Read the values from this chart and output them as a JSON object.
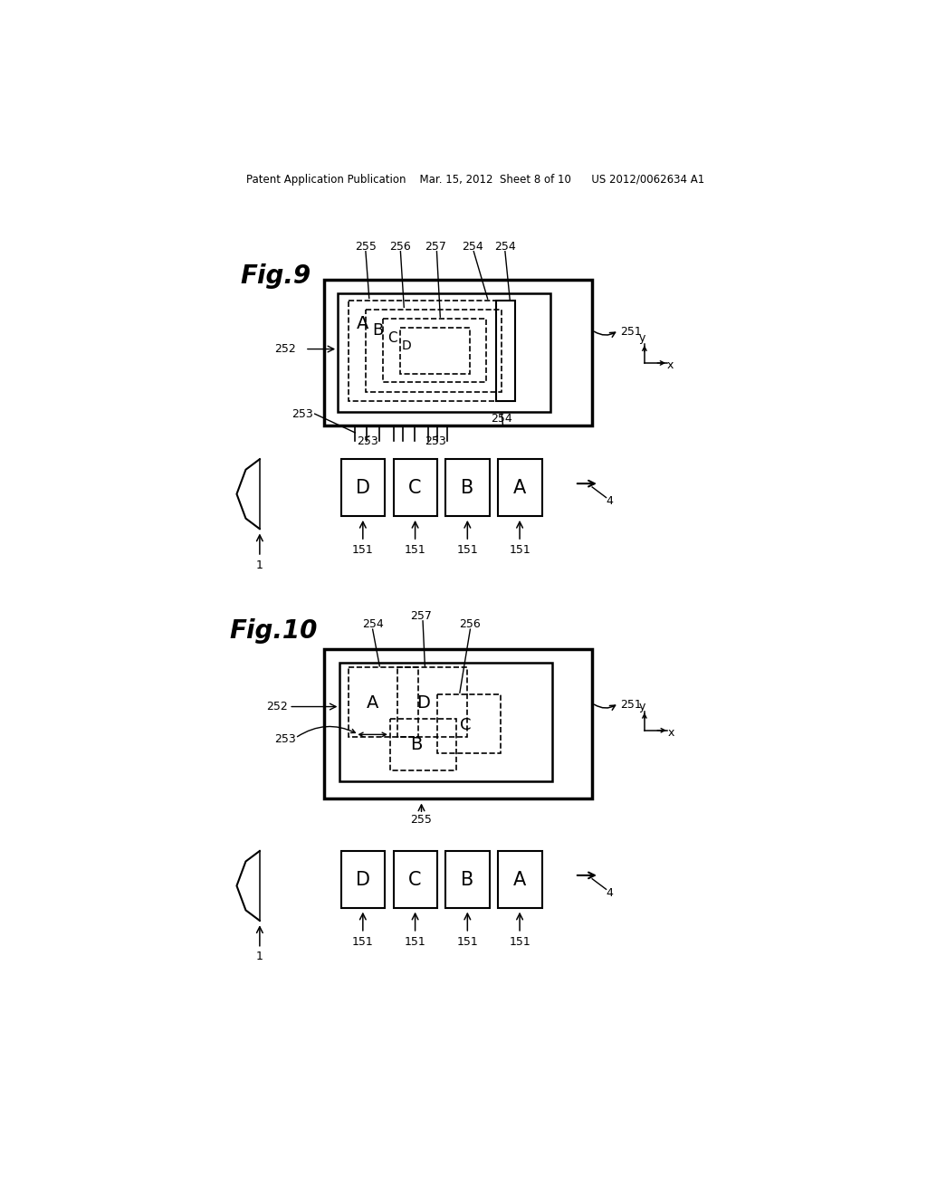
{
  "bg_color": "#ffffff",
  "header_text": "Patent Application Publication    Mar. 15, 2012  Sheet 8 of 10      US 2012/0062634 A1",
  "fig9_title": "Fig.9",
  "fig10_title": "Fig.10",
  "text_color": "#000000"
}
